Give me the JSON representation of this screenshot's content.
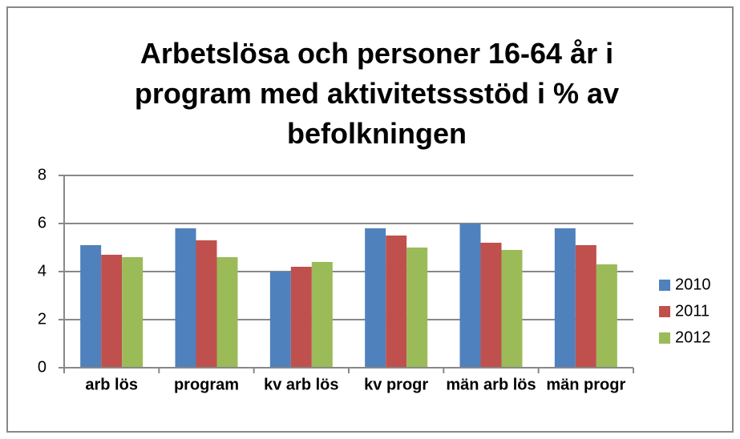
{
  "chart_data": {
    "type": "bar",
    "title": "Arbetslösa och personer 16-64 år i program med aktivitetssstöd i % av befolkningen",
    "categories": [
      "arb lös",
      "program",
      "kv arb lös",
      "kv progr",
      "män arb lös",
      "män progr"
    ],
    "series": [
      {
        "name": "2010",
        "color": "#4f81bd",
        "values": [
          5.1,
          5.8,
          4.0,
          5.8,
          6.0,
          5.8
        ]
      },
      {
        "name": "2011",
        "color": "#c0504d",
        "values": [
          4.7,
          5.3,
          4.2,
          5.5,
          5.2,
          5.1
        ]
      },
      {
        "name": "2012",
        "color": "#9bbb59",
        "values": [
          4.6,
          4.6,
          4.4,
          5.0,
          4.9,
          4.3
        ]
      }
    ],
    "ylim": [
      0,
      8
    ],
    "yticks": [
      0,
      2,
      4,
      6,
      8
    ],
    "grid": true,
    "legend": "right"
  }
}
